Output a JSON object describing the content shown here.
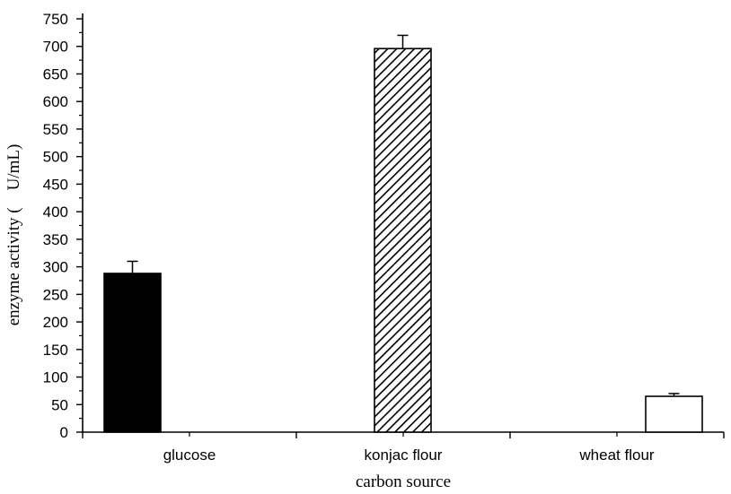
{
  "chart_data": {
    "type": "bar",
    "title": "",
    "xlabel": "carbon source",
    "ylabel": "enzyme activity (　U/mL)",
    "categories": [
      "glucose",
      "konjac flour",
      "wheat flour"
    ],
    "values": [
      288,
      696,
      65
    ],
    "errors": [
      22,
      24,
      5
    ],
    "fills": [
      "solid-black",
      "diagonal-hatch",
      "white"
    ],
    "ylim": [
      0,
      750
    ],
    "ytick_step": 50,
    "yticks": [
      "0",
      "50",
      "100",
      "150",
      "200",
      "250",
      "300",
      "350",
      "400",
      "450",
      "500",
      "550",
      "600",
      "650",
      "700",
      "750"
    ],
    "grid": false,
    "legend": "none",
    "colors": {
      "bar_solid": "#000000",
      "bar_outline": "#000000",
      "background": "#ffffff"
    }
  }
}
